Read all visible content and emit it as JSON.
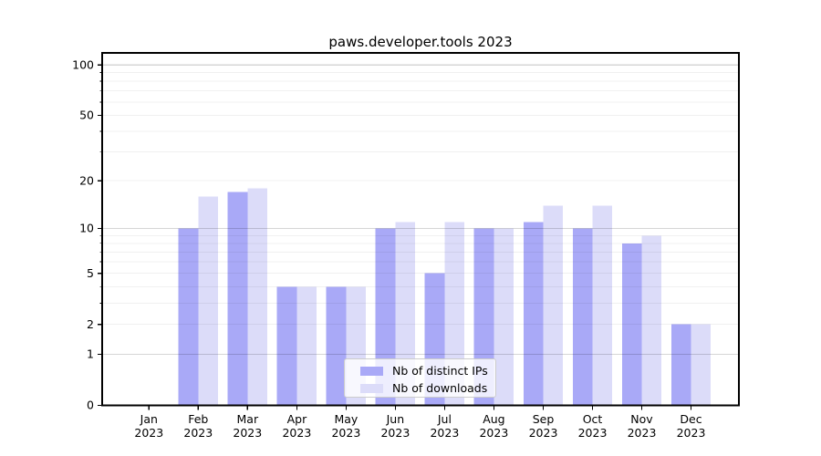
{
  "chart_data": {
    "type": "bar",
    "title": "paws.developer.tools 2023",
    "categories": [
      "Jan",
      "Feb",
      "Mar",
      "Apr",
      "May",
      "Jun",
      "Jul",
      "Aug",
      "Sep",
      "Oct",
      "Nov",
      "Dec"
    ],
    "year_label": "2023",
    "series": [
      {
        "name": "Nb of distinct IPs",
        "color": "#a9a9f7",
        "values": [
          0,
          10,
          17,
          4,
          4,
          10,
          5,
          10,
          11,
          10,
          8,
          2
        ]
      },
      {
        "name": "Nb of downloads",
        "color": "#dcdcf9",
        "values": [
          0,
          16,
          18,
          4,
          4,
          11,
          11,
          10,
          14,
          14,
          9,
          2
        ]
      }
    ],
    "yscale": "log1p",
    "ylim": [
      0,
      117
    ],
    "ytick_labels": [
      0,
      1,
      2,
      5,
      10,
      20,
      50,
      100
    ],
    "major_gridlines": [
      1,
      10,
      100
    ],
    "minor_gridlines": [
      2,
      3,
      4,
      5,
      6,
      7,
      8,
      9,
      20,
      30,
      40,
      50,
      60,
      70,
      80,
      90
    ],
    "grid": true,
    "legend_position": "lower center inside plot",
    "colors": {
      "axis": "#000000",
      "major_grid": "rgba(0,0,0,0.16)",
      "minor_grid": "rgba(0,0,0,0.06)",
      "tick_text": "#000000"
    }
  }
}
